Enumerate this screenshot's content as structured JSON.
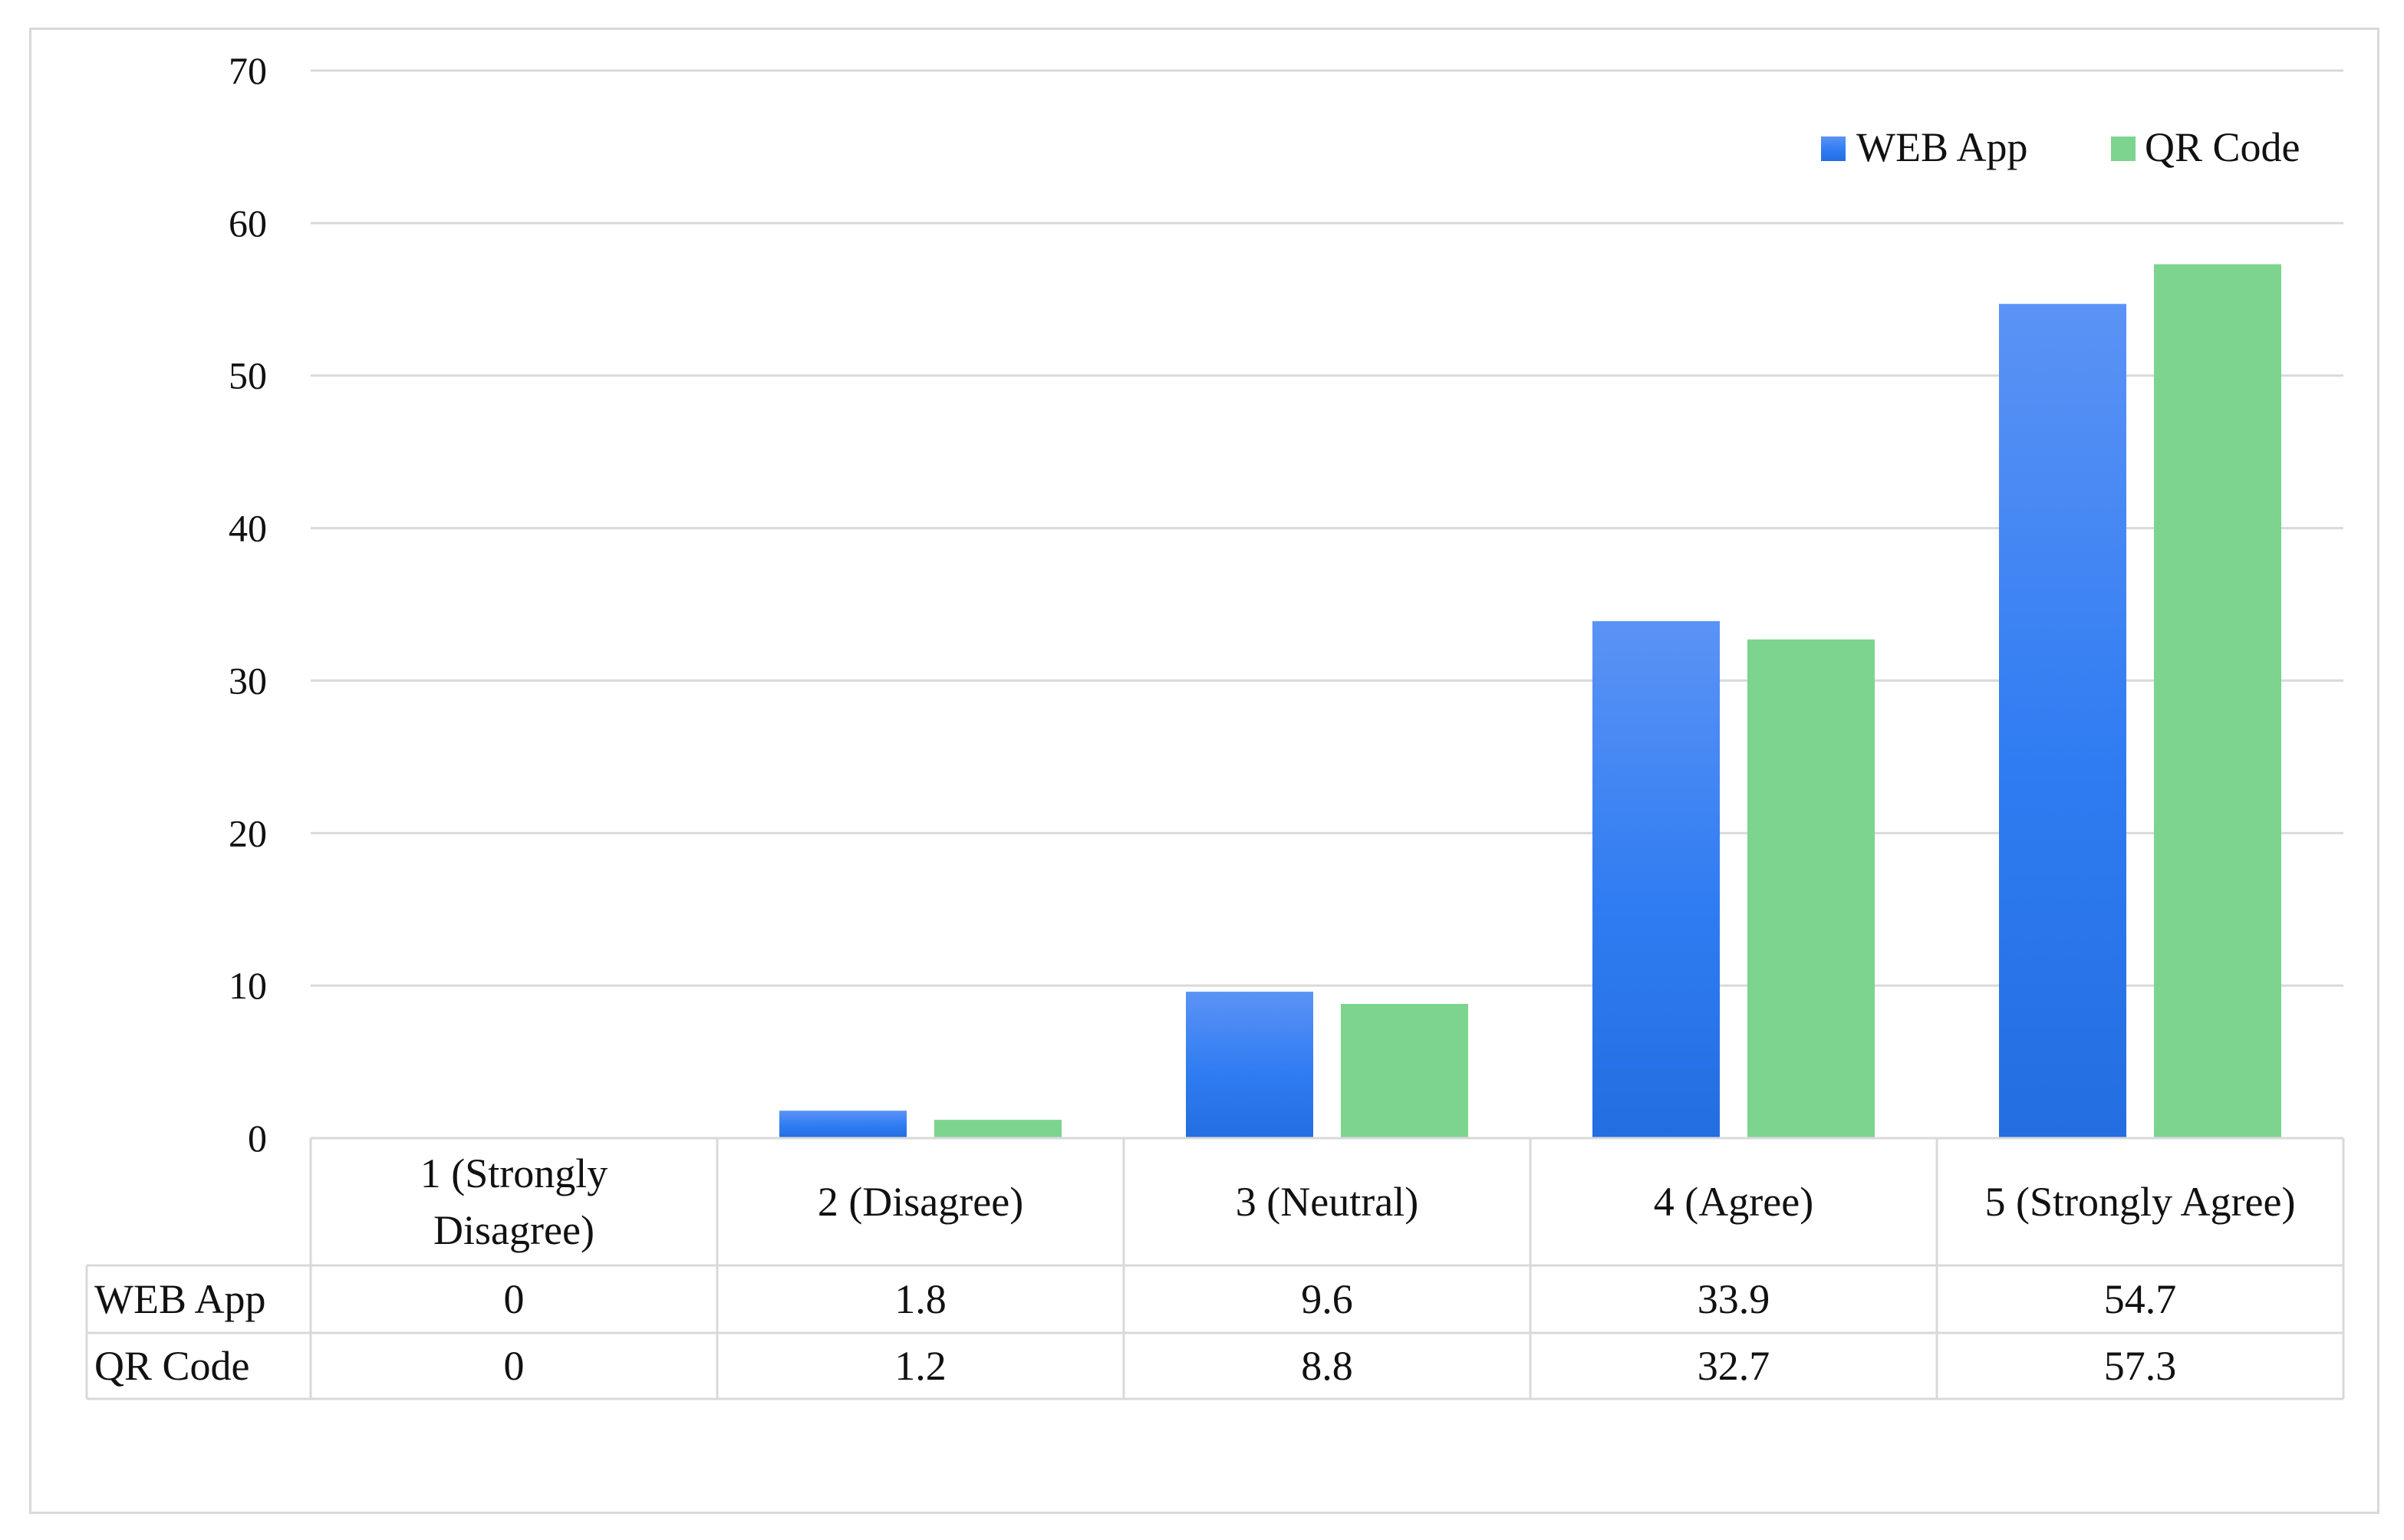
{
  "chart_data": {
    "type": "bar",
    "title": "",
    "xlabel": "",
    "ylabel": "",
    "ylim": [
      0,
      70
    ],
    "yticks": [
      0,
      10,
      20,
      30,
      40,
      50,
      60,
      70
    ],
    "grid": true,
    "legend_position": "top-right",
    "data_table": true,
    "categories": [
      [
        "1 (Strongly",
        "Disagree)"
      ],
      [
        "2 (Disagree)"
      ],
      [
        "3 (Neutral)"
      ],
      [
        "4 (Agree)"
      ],
      [
        "5 (Strongly Agree)"
      ]
    ],
    "series": [
      {
        "name": "WEB App",
        "values": [
          0,
          1.8,
          9.6,
          33.9,
          54.7
        ],
        "color": "#2f7cf2",
        "color_top": "#5b93f5",
        "color_bottom": "#236ee0"
      },
      {
        "name": "QR Code",
        "values": [
          0,
          1.2,
          8.8,
          32.7,
          57.3
        ],
        "color": "#7dd48e"
      }
    ],
    "table_values": [
      [
        "0",
        "1.8",
        "9.6",
        "33.9",
        "54.7"
      ],
      [
        "0",
        "1.2",
        "8.8",
        "32.7",
        "57.3"
      ]
    ]
  },
  "colors": {
    "gridline": "#d9d9d9",
    "table_border": "#d9d9d9",
    "frame_border": "#d9d9d9",
    "text": "#111111"
  }
}
